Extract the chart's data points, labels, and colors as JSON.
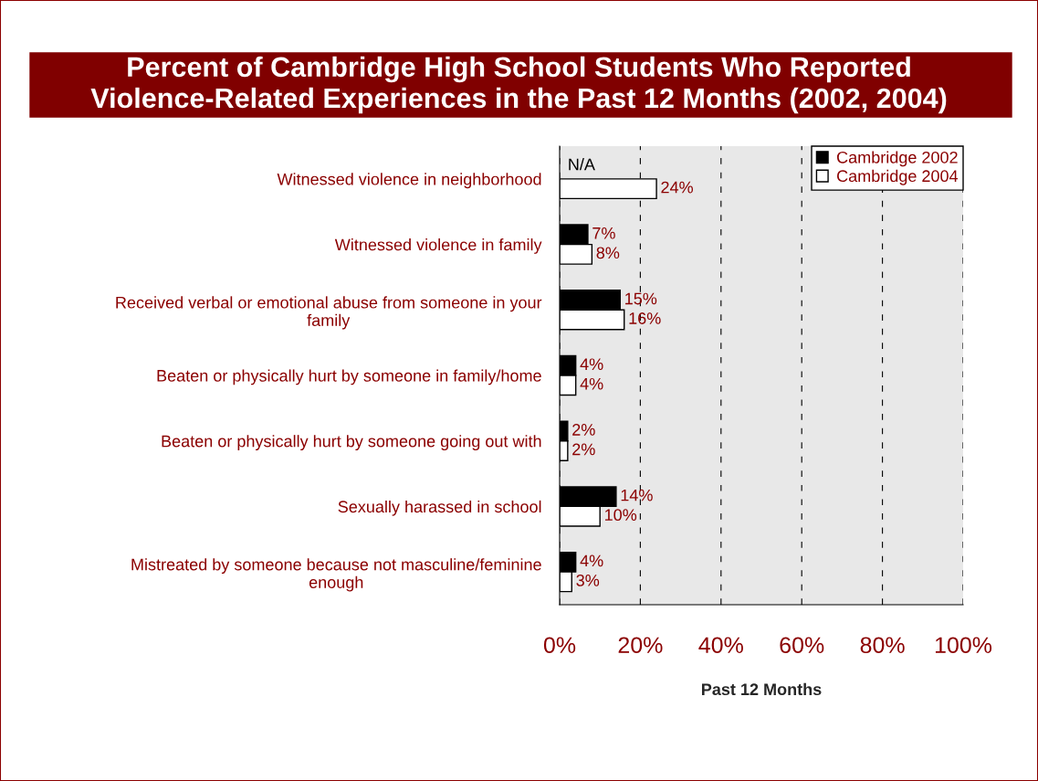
{
  "chart_data": {
    "type": "bar",
    "orientation": "horizontal",
    "title": "Percent of Cambridge High School Students Who Reported\nViolence-Related Experiences in the Past 12 Months (2002, 2004)",
    "xlabel": "Past 12 Months",
    "categories": [
      "Witnessed violence in neighborhood",
      "Witnessed violence in family",
      "Received verbal or emotional abuse from someone in your\nfamily",
      "Beaten or physically hurt by someone in family/home",
      "Beaten or physically hurt by someone going out with",
      "Sexually harassed in school",
      "Mistreated by someone because not masculine/feminine\nenough"
    ],
    "series": [
      {
        "name": "Cambridge 2002",
        "color": "#000000",
        "values": [
          null,
          7,
          15,
          4,
          2,
          14,
          4
        ],
        "value_labels": [
          "N/A",
          "7%",
          "15%",
          "4%",
          "2%",
          "14%",
          "4%"
        ]
      },
      {
        "name": "Cambridge 2004",
        "color": "#ffffff",
        "values": [
          24,
          8,
          16,
          4,
          2,
          10,
          3
        ],
        "value_labels": [
          "24%",
          "8%",
          "16%",
          "4%",
          "2%",
          "10%",
          "3%"
        ]
      }
    ],
    "xlim": [
      0,
      100
    ],
    "xticks": [
      {
        "value": 0,
        "label": "0%"
      },
      {
        "value": 20,
        "label": "20%"
      },
      {
        "value": 40,
        "label": "40%"
      },
      {
        "value": 60,
        "label": "60%"
      },
      {
        "value": 80,
        "label": "80%"
      },
      {
        "value": 100,
        "label": "100%"
      }
    ],
    "grid": "x",
    "legend": "top right"
  }
}
